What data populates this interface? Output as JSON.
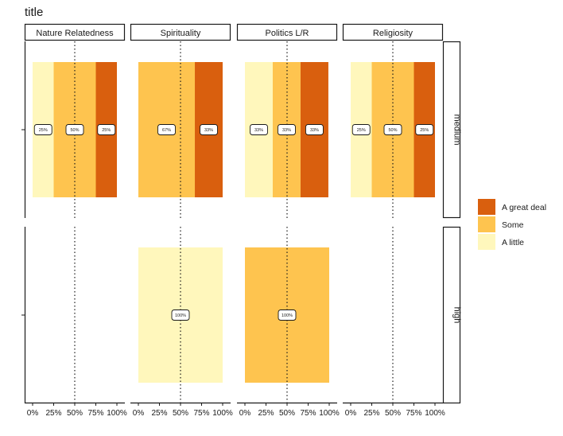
{
  "chart_data": {
    "type": "bar",
    "orientation": "horizontal-stacked-percent",
    "title": "title",
    "facet_columns": [
      "Nature Relatedness",
      "Spirituality",
      "Politics L/R",
      "Religiosity"
    ],
    "facet_rows": [
      "medium",
      "high"
    ],
    "x_ticks": [
      "0%",
      "25%",
      "50%",
      "75%",
      "100%"
    ],
    "reference_line": 50,
    "legend": {
      "position": "right",
      "entries": [
        {
          "label": "A great deal",
          "color": "#d95f0e"
        },
        {
          "label": "Some",
          "color": "#fec44f"
        },
        {
          "label": "A little",
          "color": "#fff7bc"
        }
      ]
    },
    "panels": [
      {
        "row": "medium",
        "column": "Nature Relatedness",
        "segments": [
          {
            "category": "A little",
            "value": 25,
            "label": "25%"
          },
          {
            "category": "Some",
            "value": 50,
            "label": "50%"
          },
          {
            "category": "A great deal",
            "value": 25,
            "label": "25%"
          }
        ]
      },
      {
        "row": "medium",
        "column": "Spirituality",
        "segments": [
          {
            "category": "Some",
            "value": 67,
            "label": "67%"
          },
          {
            "category": "A great deal",
            "value": 33,
            "label": "33%"
          }
        ]
      },
      {
        "row": "medium",
        "column": "Politics L/R",
        "segments": [
          {
            "category": "A little",
            "value": 33,
            "label": "33%"
          },
          {
            "category": "Some",
            "value": 33,
            "label": "33%"
          },
          {
            "category": "A great deal",
            "value": 33,
            "label": "33%"
          }
        ]
      },
      {
        "row": "medium",
        "column": "Religiosity",
        "segments": [
          {
            "category": "A little",
            "value": 25,
            "label": "25%"
          },
          {
            "category": "Some",
            "value": 50,
            "label": "50%"
          },
          {
            "category": "A great deal",
            "value": 25,
            "label": "25%"
          }
        ]
      },
      {
        "row": "high",
        "column": "Nature Relatedness",
        "segments": []
      },
      {
        "row": "high",
        "column": "Spirituality",
        "segments": [
          {
            "category": "A little",
            "value": 100,
            "label": "100%"
          }
        ]
      },
      {
        "row": "high",
        "column": "Politics L/R",
        "segments": [
          {
            "category": "Some",
            "value": 100,
            "label": "100%"
          }
        ]
      },
      {
        "row": "high",
        "column": "Religiosity",
        "segments": []
      }
    ]
  }
}
